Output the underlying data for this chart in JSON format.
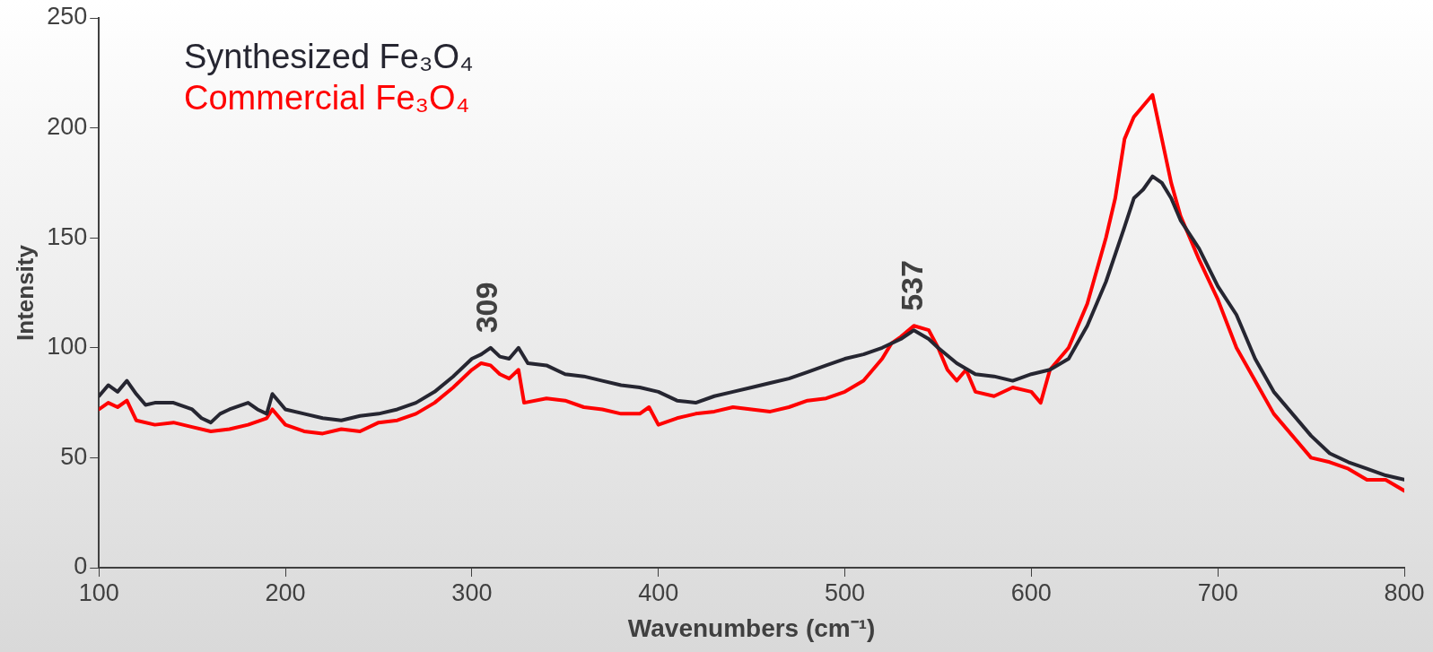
{
  "chart_data": {
    "type": "line",
    "xlabel": "Wavenumbers (cm⁻¹)",
    "ylabel": "Intensity",
    "xlim": [
      100,
      800
    ],
    "xticks": [
      100,
      200,
      300,
      400,
      500,
      600,
      700,
      800
    ],
    "ylim": [
      0,
      250
    ],
    "yticks": [
      0,
      50,
      100,
      150,
      200,
      250
    ],
    "grid": false,
    "legend": "top left",
    "marker": "none",
    "line_style": "solid",
    "annotations": [
      {
        "text": "309",
        "x": 309,
        "y": 101
      },
      {
        "text": "537",
        "x": 537,
        "y": 111
      }
    ],
    "series": [
      {
        "name": "Synthesized Fe₃O₄",
        "color": "#262631",
        "x": [
          100,
          105,
          110,
          115,
          120,
          125,
          130,
          140,
          150,
          155,
          160,
          165,
          170,
          180,
          185,
          190,
          193,
          200,
          210,
          220,
          230,
          240,
          250,
          260,
          270,
          280,
          290,
          300,
          305,
          310,
          315,
          320,
          325,
          330,
          340,
          350,
          360,
          370,
          380,
          390,
          400,
          410,
          420,
          430,
          440,
          450,
          460,
          470,
          480,
          490,
          500,
          510,
          520,
          530,
          537,
          545,
          550,
          560,
          570,
          580,
          590,
          600,
          610,
          620,
          630,
          640,
          650,
          655,
          660,
          665,
          670,
          675,
          680,
          690,
          700,
          710,
          720,
          730,
          740,
          750,
          760,
          770,
          780,
          790,
          800
        ],
        "values": [
          78,
          83,
          80,
          85,
          79,
          74,
          75,
          75,
          72,
          68,
          66,
          70,
          72,
          75,
          72,
          70,
          79,
          72,
          70,
          68,
          67,
          69,
          70,
          72,
          75,
          80,
          87,
          95,
          97,
          100,
          96,
          95,
          100,
          93,
          92,
          88,
          87,
          85,
          83,
          82,
          80,
          76,
          75,
          78,
          80,
          82,
          84,
          86,
          89,
          92,
          95,
          97,
          100,
          104,
          108,
          104,
          100,
          93,
          88,
          87,
          85,
          88,
          90,
          95,
          110,
          130,
          155,
          168,
          172,
          178,
          175,
          168,
          158,
          145,
          128,
          115,
          95,
          80,
          70,
          60,
          52,
          48,
          45,
          42,
          40
        ]
      },
      {
        "name": "Commercial Fe₃O₄",
        "color": "#ff0000",
        "x": [
          100,
          105,
          110,
          115,
          120,
          130,
          140,
          150,
          160,
          170,
          180,
          190,
          193,
          200,
          210,
          220,
          230,
          240,
          250,
          260,
          270,
          280,
          290,
          300,
          305,
          310,
          315,
          320,
          325,
          328,
          340,
          350,
          360,
          370,
          380,
          390,
          395,
          400,
          410,
          420,
          430,
          440,
          450,
          460,
          470,
          480,
          490,
          500,
          510,
          520,
          525,
          530,
          537,
          545,
          550,
          555,
          560,
          565,
          570,
          580,
          590,
          600,
          605,
          610,
          620,
          630,
          640,
          645,
          650,
          655,
          660,
          665,
          670,
          675,
          680,
          690,
          700,
          710,
          720,
          730,
          740,
          750,
          760,
          770,
          780,
          790,
          800
        ],
        "values": [
          72,
          75,
          73,
          76,
          67,
          65,
          66,
          64,
          62,
          63,
          65,
          68,
          72,
          65,
          62,
          61,
          63,
          62,
          66,
          67,
          70,
          75,
          82,
          90,
          93,
          92,
          88,
          86,
          90,
          75,
          77,
          76,
          73,
          72,
          70,
          70,
          73,
          65,
          68,
          70,
          71,
          73,
          72,
          71,
          73,
          76,
          77,
          80,
          85,
          95,
          102,
          105,
          110,
          108,
          100,
          90,
          85,
          90,
          80,
          78,
          82,
          80,
          75,
          90,
          100,
          120,
          150,
          168,
          195,
          205,
          210,
          215,
          195,
          175,
          160,
          140,
          122,
          100,
          85,
          70,
          60,
          50,
          48,
          45,
          40,
          40,
          35
        ]
      }
    ]
  }
}
